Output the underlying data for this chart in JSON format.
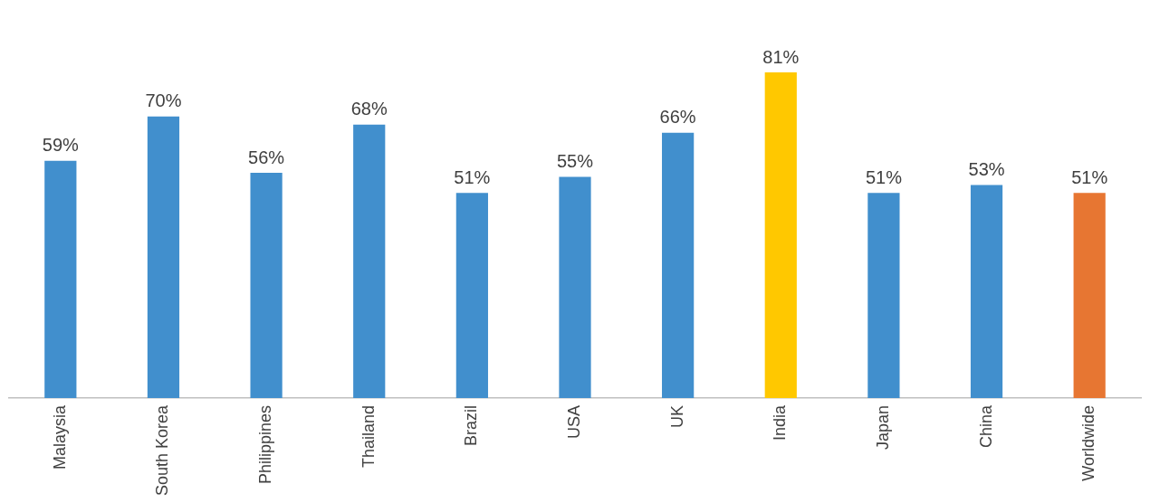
{
  "chart_data": {
    "type": "bar",
    "categories": [
      "Malaysia",
      "South Korea",
      "Philippines",
      "Thailand",
      "Brazil",
      "USA",
      "UK",
      "India",
      "Japan",
      "China",
      "Worldwide"
    ],
    "values": [
      59,
      70,
      56,
      68,
      51,
      55,
      66,
      81,
      51,
      53,
      51
    ],
    "colors": [
      "#418fcd",
      "#418fcd",
      "#418fcd",
      "#418fcd",
      "#418fcd",
      "#418fcd",
      "#418fcd",
      "#ffc800",
      "#418fcd",
      "#418fcd",
      "#e77632"
    ],
    "value_labels": [
      "59%",
      "70%",
      "56%",
      "68%",
      "51%",
      "55%",
      "66%",
      "81%",
      "51%",
      "53%",
      "51%"
    ],
    "grid": false,
    "legend": false,
    "tick_labels": "x"
  }
}
